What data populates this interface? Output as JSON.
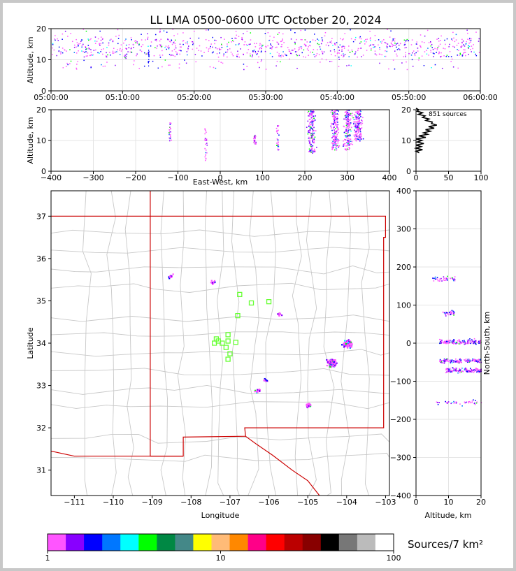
{
  "chart_data": [
    {
      "id": "time_altitude",
      "type": "scatter",
      "title": "LL LMA 0500-0600 UTC October 20, 2024",
      "xlabel": "",
      "ylabel": "Altitude, km",
      "xlim": [
        "05:00:00",
        "06:00:00"
      ],
      "ylim": [
        0,
        20
      ],
      "xticks": [
        "05:00:00",
        "05:10:00",
        "05:20:00",
        "05:30:00",
        "05:40:00",
        "05:50:00",
        "06:00:00"
      ],
      "yticks": [
        0,
        10,
        20
      ],
      "grid": true,
      "source_band_km": [
        7,
        20
      ],
      "dense_altitude_km": [
        11,
        17
      ]
    },
    {
      "id": "eastwest_altitude",
      "type": "scatter",
      "xlabel": "East-West, km",
      "ylabel": "Altitude, km",
      "xlim": [
        -400,
        400
      ],
      "ylim": [
        0,
        20
      ],
      "xticks": [
        -400,
        -300,
        -200,
        -100,
        0,
        100,
        200,
        300,
        400
      ],
      "yticks": [
        0,
        10,
        20
      ],
      "grid": true,
      "clusters": [
        {
          "x": -120,
          "alt": [
            10,
            16
          ]
        },
        {
          "x": -35,
          "alt": [
            3,
            14
          ]
        },
        {
          "x": 80,
          "alt": [
            9,
            12
          ]
        },
        {
          "x": 135,
          "alt": [
            7,
            15
          ]
        },
        {
          "x": 215,
          "alt": [
            6,
            20
          ]
        },
        {
          "x": 270,
          "alt": [
            7,
            20
          ]
        },
        {
          "x": 300,
          "alt": [
            7,
            20
          ]
        },
        {
          "x": 325,
          "alt": [
            10,
            20
          ]
        }
      ]
    },
    {
      "id": "altitude_histogram",
      "type": "line",
      "annotation": "851 sources",
      "xlim": [
        0,
        100
      ],
      "ylim": [
        0,
        20
      ],
      "xticks": [
        0,
        50,
        100
      ],
      "yticks": [
        0,
        10,
        20
      ],
      "grid": true,
      "altitude_km": [
        6,
        7,
        8,
        9,
        10,
        11,
        12,
        13,
        14,
        15,
        16,
        17,
        18,
        19,
        20
      ],
      "counts": [
        5,
        10,
        8,
        12,
        9,
        15,
        18,
        22,
        28,
        32,
        25,
        20,
        14,
        10,
        4
      ]
    },
    {
      "id": "plan_view_map",
      "type": "scatter",
      "xlabel": "Longitude",
      "ylabel": "Latitude",
      "xlim": [
        -111.6,
        -102.9
      ],
      "ylim": [
        30.4,
        37.6
      ],
      "xticks": [
        -111,
        -110,
        -109,
        -108,
        -107,
        -106,
        -105,
        -104,
        -103
      ],
      "yticks": [
        31,
        32,
        33,
        34,
        35,
        36,
        37
      ],
      "stations": [
        {
          "lon": -107.3,
          "lat": 34.05
        },
        {
          "lon": -107.2,
          "lat": 34.0
        },
        {
          "lon": -107.05,
          "lat": 34.2
        },
        {
          "lon": -107.05,
          "lat": 34.05
        },
        {
          "lon": -107.1,
          "lat": 33.9
        },
        {
          "lon": -107.0,
          "lat": 33.75
        },
        {
          "lon": -107.05,
          "lat": 33.62
        },
        {
          "lon": -106.85,
          "lat": 34.02
        },
        {
          "lon": -107.4,
          "lat": 34.0
        },
        {
          "lon": -106.8,
          "lat": 34.65
        },
        {
          "lon": -106.75,
          "lat": 35.15
        },
        {
          "lon": -106.45,
          "lat": 34.95
        },
        {
          "lon": -106.0,
          "lat": 34.98
        },
        {
          "lon": -107.35,
          "lat": 34.1
        }
      ],
      "source_clusters": [
        {
          "lon": -108.55,
          "lat": 35.6
        },
        {
          "lon": -107.45,
          "lat": 35.45
        },
        {
          "lon": -105.75,
          "lat": 34.7
        },
        {
          "lon": -104.0,
          "lat": 34.0
        },
        {
          "lon": -104.4,
          "lat": 33.55
        },
        {
          "lon": -105.0,
          "lat": 32.55
        },
        {
          "lon": -106.1,
          "lat": 33.15
        },
        {
          "lon": -106.3,
          "lat": 32.9
        }
      ]
    },
    {
      "id": "altitude_northsouth",
      "type": "scatter",
      "xlabel": "Altitude, km",
      "ylabel": "North-South, km",
      "xlim": [
        0,
        20
      ],
      "ylim": [
        -400,
        400
      ],
      "xticks": [
        0,
        10,
        20
      ],
      "yticks": [
        -400,
        -300,
        -200,
        -100,
        0,
        100,
        200,
        300,
        400
      ],
      "clusters": [
        {
          "ns": 170,
          "alt": [
            5,
            12
          ]
        },
        {
          "ns": 80,
          "alt": [
            8,
            12
          ]
        },
        {
          "ns": 5,
          "alt": [
            7,
            20
          ]
        },
        {
          "ns": -45,
          "alt": [
            7,
            20
          ]
        },
        {
          "ns": -70,
          "alt": [
            9,
            20
          ]
        },
        {
          "ns": -155,
          "alt": [
            6,
            20
          ]
        }
      ]
    }
  ],
  "colorbar": {
    "title": "Sources/7 km²",
    "scale": "log",
    "range": [
      1,
      100
    ],
    "tick_labels": [
      "1",
      "10",
      "100"
    ],
    "colors": [
      "#ff55ff",
      "#8800ff",
      "#0000ff",
      "#0077ff",
      "#00ffff",
      "#00ff00",
      "#008844",
      "#448888",
      "#ffff00",
      "#ffbb77",
      "#ff8800",
      "#ff0088",
      "#ff0000",
      "#bb0000",
      "#880000",
      "#000000",
      "#777777",
      "#bbbbbb",
      "#ffffff"
    ]
  }
}
